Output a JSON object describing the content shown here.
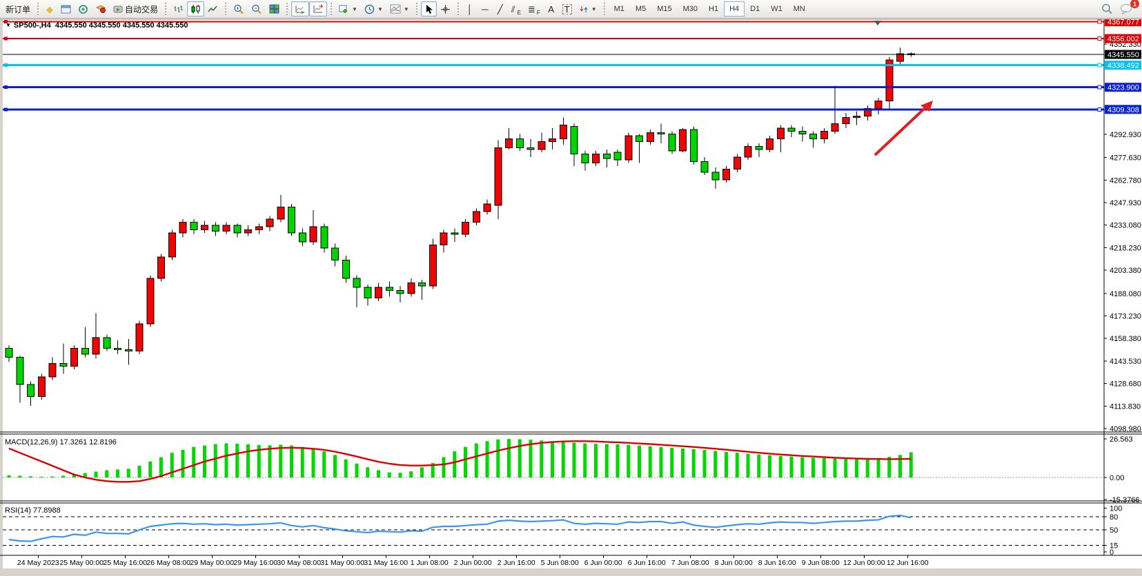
{
  "toolbar": {
    "new_order_label": "新订单",
    "autotrading_label": "自动交易",
    "timeframes": [
      "M1",
      "M5",
      "M15",
      "M30",
      "H1",
      "H4",
      "D1",
      "W1",
      "MN"
    ],
    "active_timeframe": "H4",
    "notification_count": "1",
    "text_tool_label": "A",
    "label_tool_label": "T",
    "channel_tool_label": "E",
    "fibo_tool_label": "F"
  },
  "chart_window": {
    "title": "SP500-,H4  4345.550 4345.550 4345.550 4345.550",
    "macd_label": "MACD(12,26,9) 17.3261 12.8196",
    "rsi_label": "RSI(14) 77.8988"
  },
  "price_axis": {
    "current_price": "4345.550",
    "ticks": [
      "4352.330",
      "4292.930",
      "4277.630",
      "4262.780",
      "4247.930",
      "4233.080",
      "4218.230",
      "4203.380",
      "4188.080",
      "4173.230",
      "4158.380",
      "4143.530",
      "4128.680",
      "4113.830",
      "4098.980"
    ]
  },
  "macd_axis": [
    "26.563",
    "0.00",
    "-15.3766"
  ],
  "rsi_axis": [
    "100",
    "80",
    "50",
    "15",
    "0"
  ],
  "horizontal_lines": [
    {
      "label": "4367.077",
      "price": 4367.077,
      "color": "#e00000",
      "width": 2
    },
    {
      "label": "4356.002",
      "price": 4356.002,
      "color": "#e00000",
      "width": 2
    },
    {
      "label": "4338.492",
      "price": 4338.492,
      "color": "#00c4f4",
      "width": 3
    },
    {
      "label": "4323.900",
      "price": 4323.9,
      "color": "#0a1fd8",
      "width": 3
    },
    {
      "label": "4309.308",
      "price": 4309.308,
      "color": "#0a1fd8",
      "width": 3
    }
  ],
  "annotations": {
    "arrow": {
      "from": [
        1268,
        225
      ],
      "to": [
        1352,
        146
      ],
      "color": "#e02020"
    }
  },
  "chart_data": {
    "type": "candlestick",
    "symbol": "SP500-",
    "period": "H4",
    "bull_color": "#f00404",
    "bear_color": "#00d400",
    "current_price": 4345.55,
    "x_labels": [
      "24 May 2023",
      "25 May 00:00",
      "25 May 16:00",
      "26 May 08:00",
      "29 May 00:00",
      "29 May 16:00",
      "30 May 08:00",
      "31 May 00:00",
      "31 May 16:00",
      "1 Jun 08:00",
      "2 Jun 00:00",
      "2 Jun 16:00",
      "5 Jun 08:00",
      "6 Jun 00:00",
      "6 Jun 16:00",
      "7 Jun 08:00",
      "8 Jun 00:00",
      "8 Jun 16:00",
      "9 Jun 08:00",
      "12 Jun 00:00",
      "12 Jun 16:00"
    ],
    "candles": [
      [
        4152,
        4154,
        4143,
        4146
      ],
      [
        4146,
        4147,
        4116,
        4128
      ],
      [
        4128,
        4130,
        4114,
        4120
      ],
      [
        4120,
        4135,
        4118,
        4133
      ],
      [
        4133,
        4146,
        4131,
        4142
      ],
      [
        4142,
        4155,
        4135,
        4140
      ],
      [
        4140,
        4154,
        4138,
        4152
      ],
      [
        4152,
        4166,
        4146,
        4148
      ],
      [
        4148,
        4175,
        4145,
        4159
      ],
      [
        4159,
        4161,
        4150,
        4152
      ],
      [
        4152,
        4157,
        4148,
        4151
      ],
      [
        4151,
        4158,
        4141,
        4150
      ],
      [
        4150,
        4170,
        4148,
        4168
      ],
      [
        4168,
        4200,
        4166,
        4198
      ],
      [
        4198,
        4214,
        4196,
        4212
      ],
      [
        4212,
        4230,
        4210,
        4228
      ],
      [
        4228,
        4237,
        4225,
        4235
      ],
      [
        4235,
        4237,
        4227,
        4230
      ],
      [
        4230,
        4236,
        4228,
        4233
      ],
      [
        4233,
        4235,
        4226,
        4229
      ],
      [
        4229,
        4235,
        4227,
        4233
      ],
      [
        4233,
        4234,
        4225,
        4228
      ],
      [
        4228,
        4233,
        4226,
        4230
      ],
      [
        4230,
        4234,
        4227,
        4232
      ],
      [
        4232,
        4239,
        4229,
        4237
      ],
      [
        4237,
        4253,
        4235,
        4245
      ],
      [
        4245,
        4247,
        4226,
        4228
      ],
      [
        4228,
        4231,
        4219,
        4222
      ],
      [
        4222,
        4243,
        4220,
        4232
      ],
      [
        4232,
        4234,
        4215,
        4218
      ],
      [
        4218,
        4221,
        4206,
        4210
      ],
      [
        4210,
        4213,
        4195,
        4198
      ],
      [
        4198,
        4200,
        4179,
        4192
      ],
      [
        4192,
        4194,
        4180,
        4185
      ],
      [
        4185,
        4195,
        4183,
        4192
      ],
      [
        4192,
        4196,
        4186,
        4190
      ],
      [
        4190,
        4193,
        4182,
        4188
      ],
      [
        4188,
        4198,
        4186,
        4195
      ],
      [
        4195,
        4197,
        4184,
        4193
      ],
      [
        4193,
        4224,
        4191,
        4220
      ],
      [
        4220,
        4230,
        4215,
        4228
      ],
      [
        4228,
        4231,
        4222,
        4227
      ],
      [
        4227,
        4237,
        4225,
        4235
      ],
      [
        4235,
        4244,
        4233,
        4242
      ],
      [
        4242,
        4250,
        4240,
        4247
      ],
      [
        4246,
        4289,
        4237,
        4284
      ],
      [
        4284,
        4297,
        4283,
        4290
      ],
      [
        4290,
        4293,
        4282,
        4284
      ],
      [
        4284,
        4290,
        4278,
        4283
      ],
      [
        4283,
        4294,
        4281,
        4288
      ],
      [
        4288,
        4297,
        4283,
        4290
      ],
      [
        4290,
        4304,
        4286,
        4299
      ],
      [
        4298,
        4300,
        4272,
        4280
      ],
      [
        4280,
        4282,
        4269,
        4274
      ],
      [
        4274,
        4282,
        4272,
        4280
      ],
      [
        4280,
        4283,
        4271,
        4277
      ],
      [
        4281,
        4283,
        4272,
        4276
      ],
      [
        4276,
        4294,
        4274,
        4292
      ],
      [
        4292,
        4293,
        4274,
        4288
      ],
      [
        4288,
        4296,
        4286,
        4294
      ],
      [
        4294,
        4300,
        4287,
        4293
      ],
      [
        4293,
        4295,
        4280,
        4282
      ],
      [
        4282,
        4297,
        4281,
        4296
      ],
      [
        4296,
        4298,
        4273,
        4275
      ],
      [
        4275,
        4278,
        4266,
        4268
      ],
      [
        4268,
        4271,
        4257,
        4263
      ],
      [
        4263,
        4272,
        4261,
        4270
      ],
      [
        4270,
        4280,
        4268,
        4278
      ],
      [
        4278,
        4287,
        4276,
        4285
      ],
      [
        4285,
        4287,
        4278,
        4283
      ],
      [
        4283,
        4292,
        4281,
        4290
      ],
      [
        4290,
        4299,
        4281,
        4297
      ],
      [
        4297,
        4299,
        4291,
        4295
      ],
      [
        4295,
        4298,
        4288,
        4293
      ],
      [
        4293,
        4295,
        4284,
        4290
      ],
      [
        4290,
        4297,
        4287,
        4295
      ],
      [
        4295,
        4325,
        4293,
        4300
      ],
      [
        4300,
        4307,
        4297,
        4304
      ],
      [
        4304,
        4308,
        4299,
        4305
      ],
      [
        4305,
        4312,
        4302,
        4310
      ],
      [
        4310,
        4317,
        4306,
        4315
      ],
      [
        4315,
        4344,
        4310,
        4342
      ],
      [
        4341,
        4350,
        4339,
        4346
      ],
      [
        4346,
        4347,
        4344,
        4345.5
      ]
    ],
    "macd": {
      "histogram_color": "#00d800",
      "signal_color": "#dd0000",
      "histogram": [
        1.5,
        1.2,
        0.8,
        0.5,
        0.7,
        1.2,
        2,
        3,
        4,
        5,
        5.5,
        6,
        8,
        11,
        14,
        17,
        19,
        21,
        22,
        23,
        23.5,
        23.2,
        22.8,
        22.4,
        22.2,
        22.5,
        22,
        21,
        20,
        18,
        15.5,
        12.5,
        9.5,
        7,
        5,
        3.5,
        3.2,
        4.2,
        7,
        10,
        14,
        18,
        21,
        23.5,
        25,
        26.2,
        26.5,
        26.3,
        26,
        25.5,
        25,
        24.5,
        24,
        23.5,
        23.2,
        23,
        22.8,
        22.5,
        22,
        21.5,
        21,
        20.5,
        20,
        19.5,
        19,
        18.3,
        17.6,
        17,
        16.4,
        15.8,
        15.3,
        14.8,
        14.4,
        14,
        13.6,
        13.3,
        13,
        12.8,
        12.8,
        13,
        13.4,
        14.2,
        15.5,
        17.33
      ],
      "signal": [
        20,
        17,
        14,
        11,
        8,
        5,
        2,
        0,
        -1.5,
        -2.5,
        -3,
        -3,
        -2.5,
        -1,
        1,
        3.5,
        6,
        8.5,
        11,
        13,
        15,
        16.5,
        18,
        19,
        19.8,
        20.3,
        20.5,
        20.3,
        19.8,
        19,
        17.8,
        16.2,
        14.4,
        12.5,
        10.8,
        9.5,
        8.6,
        8.2,
        8.2,
        8.5,
        9,
        10.5,
        12.5,
        14.5,
        16.5,
        18.5,
        20.2,
        21.7,
        22.9,
        23.8,
        24.4,
        24.8,
        25,
        25,
        24.8,
        24.5,
        24.2,
        23.8,
        23.4,
        23,
        22.5,
        22,
        21.5,
        21,
        20.4,
        19.8,
        19.1,
        18.4,
        17.7,
        17,
        16.4,
        15.8,
        15.3,
        14.8,
        14.4,
        14,
        13.6,
        13.3,
        13,
        12.8,
        12.7,
        12.6,
        12.7,
        12.82
      ]
    },
    "rsi": {
      "color": "#3a96ee",
      "levels": [
        80,
        50,
        15
      ],
      "values": [
        28,
        25,
        24,
        30,
        35,
        34,
        40,
        38,
        45,
        42,
        42,
        41,
        50,
        58,
        61,
        64,
        65,
        63,
        64,
        62,
        63,
        61,
        62,
        63,
        64,
        66,
        60,
        57,
        60,
        55,
        52,
        48,
        46,
        44,
        47,
        46,
        45,
        48,
        47,
        56,
        58,
        58,
        60,
        62,
        63,
        70,
        72,
        70,
        69,
        70,
        71,
        73,
        65,
        63,
        65,
        64,
        63,
        68,
        67,
        69,
        69,
        65,
        68,
        61,
        58,
        56,
        59,
        62,
        64,
        63,
        66,
        68,
        67,
        67,
        65,
        67,
        69,
        70,
        70,
        72,
        73,
        81,
        83,
        78
      ]
    }
  }
}
